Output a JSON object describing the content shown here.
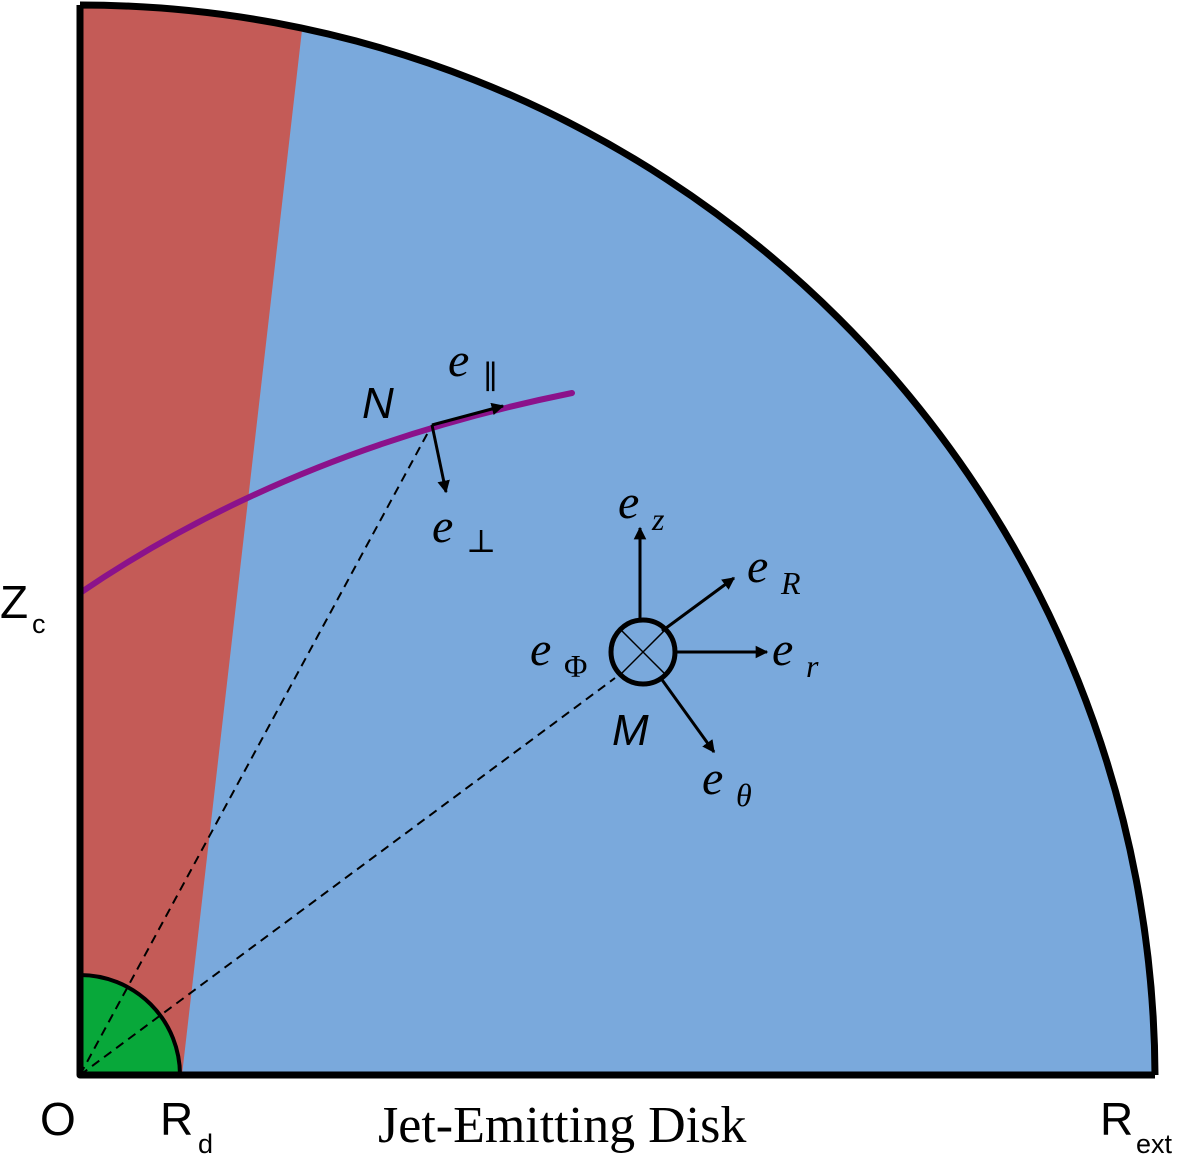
{
  "colors": {
    "jet_region": "#c45b57",
    "disk_region": "#7aa9dc",
    "inner_region": "#08a83a",
    "field_line": "#8b128b",
    "outline": "#000000"
  },
  "labels": {
    "origin": "O",
    "rd_main": "R",
    "rd_sub": "d",
    "rext_main": "R",
    "rext_sub": "ext",
    "zc_main": "Z",
    "zc_sub": "c",
    "disk_title": "Jet-Emitting Disk",
    "point_n": "N",
    "point_m": "M"
  },
  "vectors": {
    "e_base": "e",
    "par_sub": "∥",
    "perp_sub": "⊥",
    "z_sub": "z",
    "R_sub": "R",
    "r_sub": "r",
    "phi_sub": "Φ",
    "theta_sub": "θ"
  }
}
